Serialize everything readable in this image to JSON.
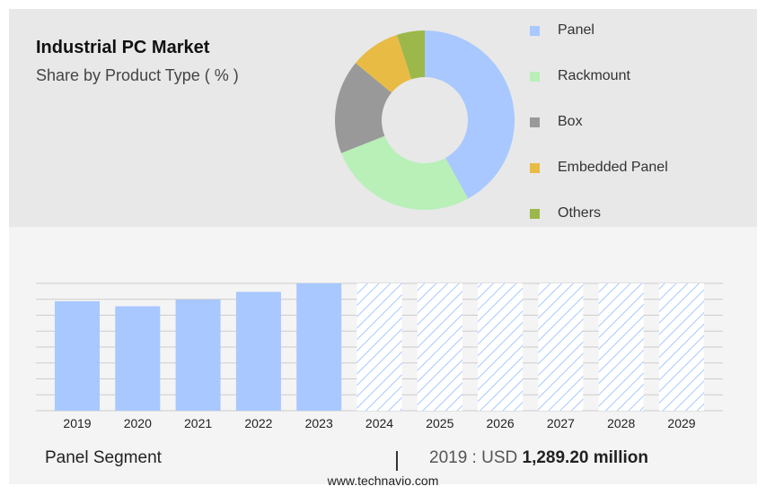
{
  "header": {
    "title": "Industrial PC Market",
    "subtitle": "Share by Product Type ( % )"
  },
  "colors": {
    "panel": "#a8c8ff",
    "rackmount": "#b8f0b8",
    "box": "#999999",
    "embedded_panel": "#e8bb45",
    "others": "#9cb84a",
    "bar": "#a8c8ff",
    "forecast_hatch": "#a8c8ff",
    "grid": "#cccccc"
  },
  "chart_data": [
    {
      "type": "pie",
      "donut": true,
      "categories": [
        "Panel",
        "Rackmount",
        "Box",
        "Embedded Panel",
        "Others"
      ],
      "values": [
        42,
        27,
        17,
        9,
        5
      ],
      "legend_position": "right"
    },
    {
      "type": "bar",
      "categories": [
        "2019",
        "2020",
        "2021",
        "2022",
        "2023",
        "2024",
        "2025",
        "2026",
        "2027",
        "2028",
        "2029"
      ],
      "values": [
        1289.2,
        1230,
        1310,
        1400,
        1500,
        null,
        null,
        null,
        null,
        null,
        null
      ],
      "forecast_categories": [
        "2024",
        "2025",
        "2026",
        "2027",
        "2028",
        "2029"
      ],
      "ylim": [
        0,
        1500
      ],
      "grid": true,
      "xlabel": "",
      "ylabel": ""
    }
  ],
  "footer": {
    "segment": "Panel Segment",
    "separator": "|",
    "year_label": "2019 : USD",
    "value_label": "1,289.20 million",
    "website": "www.technavio.com"
  }
}
